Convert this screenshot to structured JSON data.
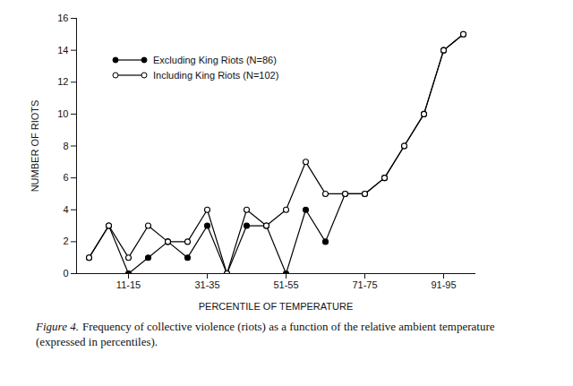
{
  "chart_data": {
    "type": "line",
    "caption_label": "Figure 4.",
    "caption": "Frequency of collective violence (riots) as a function of the relative ambient temperature (expressed in percentiles).",
    "x_label": "PERCENTILE OF TEMPERATURE",
    "y_label": "NUMBER OF RIOTS",
    "categories": [
      null,
      null,
      "11-15",
      null,
      null,
      null,
      "31-35",
      null,
      null,
      null,
      "51-55",
      null,
      null,
      null,
      "71-75",
      null,
      null,
      null,
      "91-95",
      null
    ],
    "ylim": [
      0,
      16
    ],
    "yticks": [
      0,
      2,
      4,
      6,
      8,
      10,
      12,
      14,
      16
    ],
    "legend": "top-left",
    "series": [
      {
        "name": "Excluding King Riots (N=86)",
        "color": "#000000",
        "marker": "filled",
        "values": [
          1,
          3,
          0,
          1,
          2,
          1,
          3,
          0,
          3,
          3,
          0,
          4,
          2,
          5,
          5,
          6,
          8,
          10,
          14,
          15
        ]
      },
      {
        "name": "Including King Riots (N=102)",
        "color": "#000000",
        "marker": "open",
        "values": [
          1,
          3,
          1,
          3,
          2,
          2,
          4,
          0,
          4,
          3,
          4,
          7,
          5,
          5,
          5,
          6,
          8,
          10,
          14,
          15
        ]
      }
    ]
  }
}
